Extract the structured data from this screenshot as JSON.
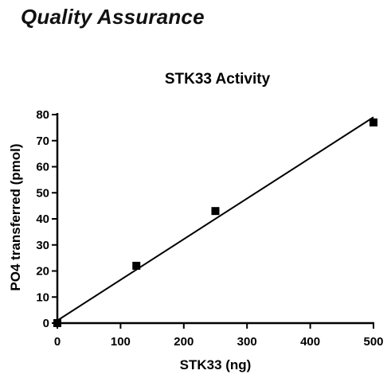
{
  "page": {
    "heading": "Quality Assurance"
  },
  "chart_data": {
    "type": "scatter",
    "title": "STK33 Activity",
    "xlabel": "STK33 (ng)",
    "ylabel": "PO4 transferred (pmol)",
    "xlim": [
      0,
      500
    ],
    "ylim": [
      0,
      80
    ],
    "xticks": [
      0,
      100,
      200,
      300,
      400,
      500
    ],
    "yticks": [
      0,
      10,
      20,
      30,
      40,
      50,
      60,
      70,
      80
    ],
    "grid": false,
    "legend": "none",
    "series": [
      {
        "points": [
          {
            "x": 0,
            "y": 0
          },
          {
            "x": 125,
            "y": 22
          },
          {
            "x": 250,
            "y": 43
          },
          {
            "x": 500,
            "y": 77
          }
        ],
        "marker": "square",
        "color": "#000000"
      }
    ],
    "fit_line": {
      "type": "linear",
      "from": {
        "x": 0,
        "y": 1
      },
      "to": {
        "x": 500,
        "y": 79
      },
      "color": "#000000"
    }
  }
}
